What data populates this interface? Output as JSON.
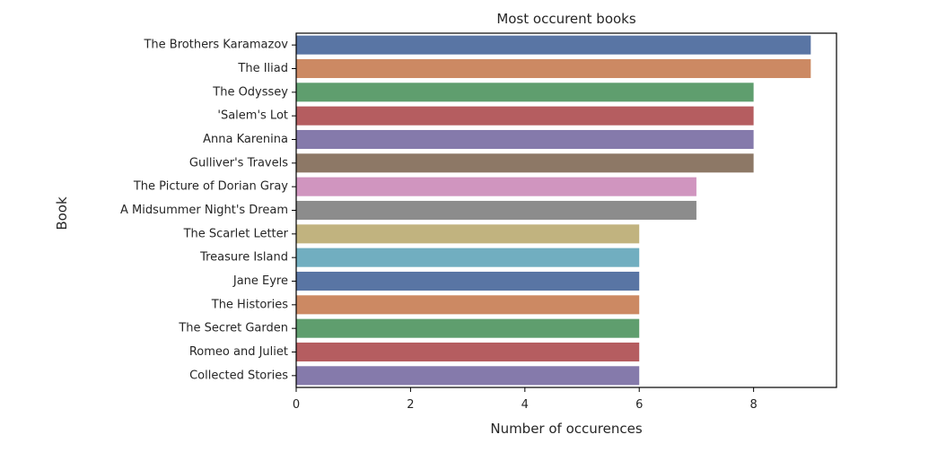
{
  "chart_data": {
    "type": "bar",
    "orientation": "horizontal",
    "title": "Most occurent books",
    "xlabel": "Number of occurences",
    "ylabel": "Book",
    "xlim": [
      0,
      9.45
    ],
    "xticks": [
      0,
      2,
      4,
      6,
      8
    ],
    "grid": false,
    "categories": [
      "The Brothers Karamazov",
      "The Iliad",
      "The Odyssey",
      "'Salem's Lot",
      "Anna Karenina",
      "Gulliver's Travels",
      "The Picture of Dorian Gray",
      "A Midsummer Night's Dream",
      "The Scarlet Letter",
      "Treasure Island",
      "Jane Eyre",
      "The Histories",
      "The Secret Garden",
      "Romeo and Juliet",
      "Collected Stories"
    ],
    "values": [
      9,
      9,
      8,
      8,
      8,
      8,
      7,
      7,
      6,
      6,
      6,
      6,
      6,
      6,
      6
    ],
    "colors": [
      "#5975a4",
      "#cc8963",
      "#5f9e6e",
      "#b55d60",
      "#857aab",
      "#8d7866",
      "#d095bf",
      "#8c8c8c",
      "#c1b37f",
      "#71aec0",
      "#5975a4",
      "#cc8963",
      "#5f9e6e",
      "#b55d60",
      "#857aab"
    ]
  }
}
